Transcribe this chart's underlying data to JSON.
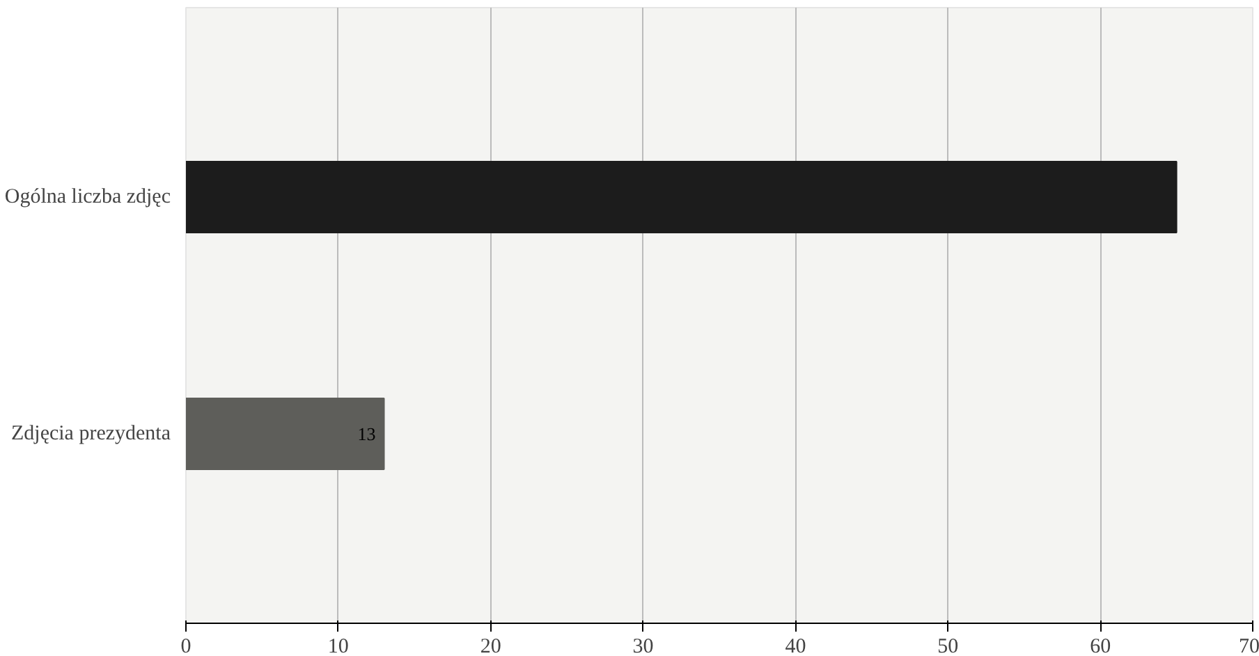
{
  "chart_data": {
    "type": "bar",
    "orientation": "horizontal",
    "categories": [
      "Ogólna liczba zdjęc",
      "Zdjęcia prezydenta"
    ],
    "values": [
      65,
      13
    ],
    "value_labels": [
      null,
      "13"
    ],
    "colors": [
      "#1c1c1c",
      "#5e5e5a"
    ],
    "xlim": [
      0,
      70
    ],
    "xticks": [
      0,
      10,
      20,
      30,
      40,
      50,
      60,
      70
    ],
    "grid": "x"
  }
}
